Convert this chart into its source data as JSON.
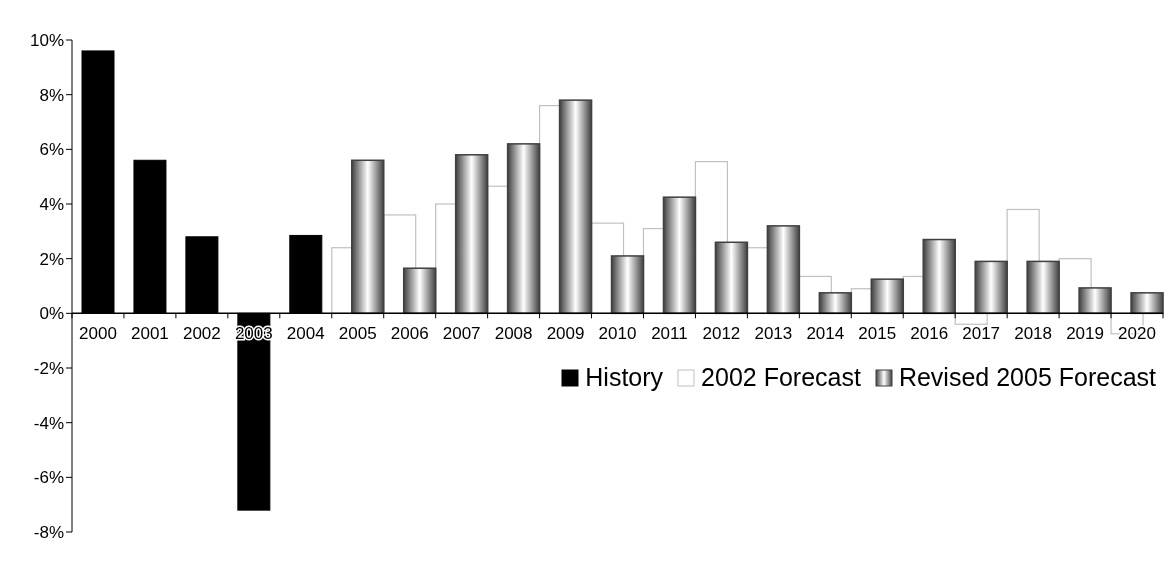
{
  "chart_data": {
    "type": "bar",
    "categories": [
      "2000",
      "2001",
      "2002",
      "2003",
      "2004",
      "2005",
      "2006",
      "2007",
      "2008",
      "2009",
      "2010",
      "2011",
      "2012",
      "2013",
      "2014",
      "2015",
      "2016",
      "2017",
      "2018",
      "2019",
      "2020"
    ],
    "series": [
      {
        "name": "2002 Forecast",
        "color": "#c0c0c0",
        "values": [
          null,
          null,
          null,
          null,
          null,
          2.4,
          3.6,
          4.0,
          4.65,
          7.6,
          3.3,
          3.1,
          5.55,
          2.4,
          1.35,
          0.9,
          1.35,
          -0.4,
          3.8,
          2.0,
          -0.75
        ]
      },
      {
        "name": "History",
        "color": "#000000",
        "values": [
          9.6,
          5.6,
          2.8,
          -7.2,
          2.85,
          null,
          null,
          null,
          null,
          null,
          null,
          null,
          null,
          null,
          null,
          null,
          null,
          null,
          null,
          null,
          null
        ]
      },
      {
        "name": "Revised 2005 Forecast",
        "color": "#404040",
        "values": [
          null,
          null,
          null,
          null,
          null,
          5.6,
          1.65,
          5.8,
          6.2,
          7.8,
          2.1,
          4.25,
          2.6,
          3.2,
          0.75,
          1.25,
          2.7,
          1.9,
          1.9,
          0.93,
          0.75
        ]
      }
    ],
    "ylim": [
      -8,
      10
    ],
    "yticks": [
      {
        "value": -8,
        "label": "-8%"
      },
      {
        "value": -6,
        "label": "-6%"
      },
      {
        "value": -4,
        "label": "-4%"
      },
      {
        "value": -2,
        "label": "-2%"
      },
      {
        "value": 0,
        "label": "0%"
      },
      {
        "value": 2,
        "label": "2%"
      },
      {
        "value": 4,
        "label": "4%"
      },
      {
        "value": 6,
        "label": "6%"
      },
      {
        "value": 8,
        "label": "8%"
      },
      {
        "value": 10,
        "label": "10%"
      }
    ],
    "legend": "right"
  }
}
